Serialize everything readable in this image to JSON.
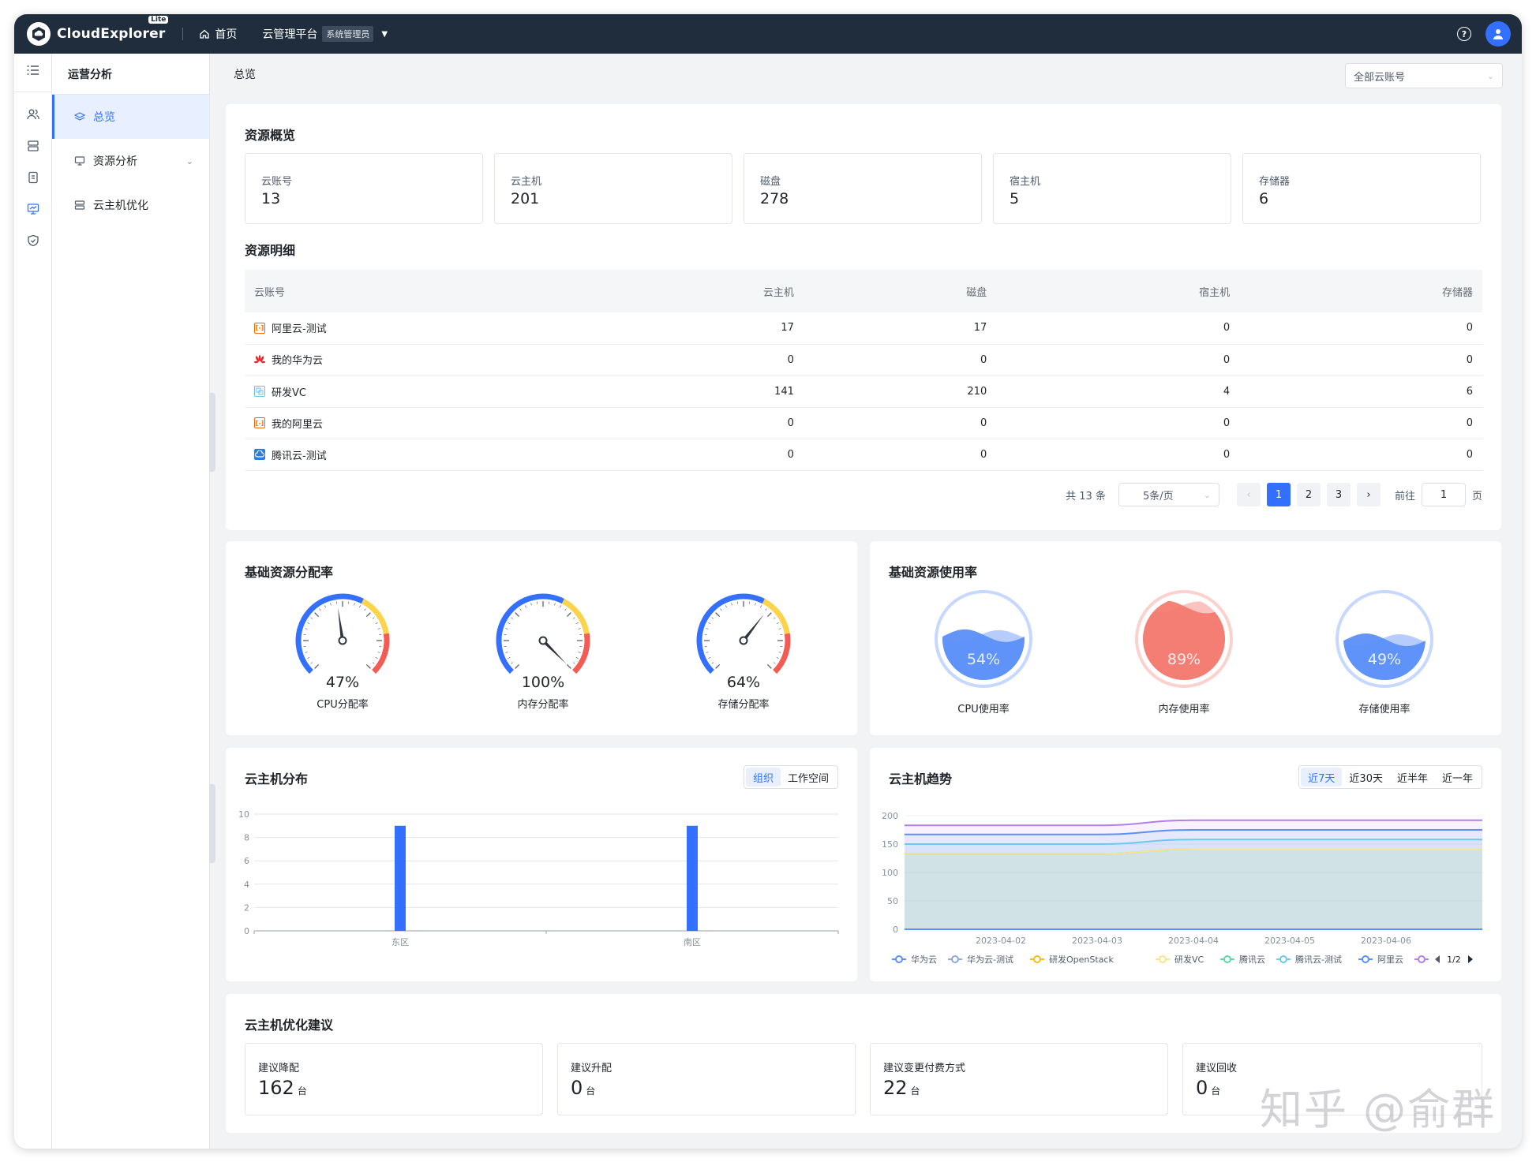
{
  "brand": {
    "name": "CloudExplorer",
    "badge": "Lite"
  },
  "topnav": {
    "home": "首页",
    "platform": "云管理平台",
    "role": "系统管理员"
  },
  "sidebar": {
    "title": "运营分析",
    "items": [
      {
        "label": "总览"
      },
      {
        "label": "资源分析"
      },
      {
        "label": "云主机优化"
      }
    ]
  },
  "breadcrumb": "总览",
  "account_select": "全部云账号",
  "overview": {
    "title": "资源概览",
    "stats": [
      {
        "label": "云账号",
        "value": "13"
      },
      {
        "label": "云主机",
        "value": "201"
      },
      {
        "label": "磁盘",
        "value": "278"
      },
      {
        "label": "宿主机",
        "value": "5"
      },
      {
        "label": "存储器",
        "value": "6"
      }
    ]
  },
  "detail": {
    "title": "资源明细",
    "columns": [
      "云账号",
      "云主机",
      "磁盘",
      "宿主机",
      "存储器"
    ],
    "rows": [
      {
        "icon": "aliyun-icon",
        "name": "阿里云-测试",
        "vm": "17",
        "disk": "17",
        "host": "0",
        "storage": "0"
      },
      {
        "icon": "huawei-icon",
        "name": "我的华为云",
        "vm": "0",
        "disk": "0",
        "host": "0",
        "storage": "0"
      },
      {
        "icon": "vsphere-icon",
        "name": "研发VC",
        "vm": "141",
        "disk": "210",
        "host": "4",
        "storage": "6"
      },
      {
        "icon": "aliyun-icon",
        "name": "我的阿里云",
        "vm": "0",
        "disk": "0",
        "host": "0",
        "storage": "0"
      },
      {
        "icon": "tencent-icon",
        "name": "腾讯云-测试",
        "vm": "0",
        "disk": "0",
        "host": "0",
        "storage": "0"
      }
    ],
    "pagination": {
      "total": "共 13 条",
      "page_size": "5条/页",
      "pages": [
        "1",
        "2",
        "3"
      ],
      "current": "1",
      "goto_label": "前往",
      "goto_value": "1",
      "page_unit": "页"
    }
  },
  "allocation": {
    "title": "基础资源分配率",
    "gauges": [
      {
        "pct": "47%",
        "value": 47,
        "label": "CPU分配率"
      },
      {
        "pct": "100%",
        "value": 100,
        "label": "内存分配率"
      },
      {
        "pct": "64%",
        "value": 64,
        "label": "存储分配率"
      }
    ]
  },
  "usage": {
    "title": "基础资源使用率",
    "items": [
      {
        "pct": "54%",
        "value": 54,
        "label": "CPU使用率",
        "color": "#5b8ff9"
      },
      {
        "pct": "89%",
        "value": 89,
        "label": "内存使用率",
        "color": "#f47a70"
      },
      {
        "pct": "49%",
        "value": 49,
        "label": "存储使用率",
        "color": "#5b8ff9"
      }
    ]
  },
  "vm_dist": {
    "title": "云主机分布",
    "tabs": [
      "组织",
      "工作空间"
    ],
    "active_tab": "组织"
  },
  "vm_trend": {
    "title": "云主机趋势",
    "tabs": [
      "近7天",
      "近30天",
      "近半年",
      "近一年"
    ],
    "active_tab": "近7天",
    "legend_page": "1/2"
  },
  "optimize": {
    "title": "云主机优化建议",
    "items": [
      {
        "label": "建议降配",
        "value": "162",
        "unit": "台"
      },
      {
        "label": "建议升配",
        "value": "0",
        "unit": "台"
      },
      {
        "label": "建议变更付费方式",
        "value": "22",
        "unit": "台"
      },
      {
        "label": "建议回收",
        "value": "0",
        "unit": "台"
      }
    ]
  },
  "watermark": "知乎 @俞群",
  "colors": {
    "primary": "#3370ff",
    "topbar": "#1f2d3d",
    "gauge_blue": "#3370ff",
    "gauge_yellow": "#fbd44b",
    "gauge_red": "#f25c54"
  },
  "chart_data": [
    {
      "type": "bar",
      "categories": [
        "东区",
        "南区"
      ],
      "values": [
        9,
        9
      ],
      "ylim": [
        0,
        10
      ],
      "yticks": [
        0,
        2,
        4,
        6,
        8,
        10
      ],
      "title": "云主机分布",
      "xlabel": "",
      "ylabel": "",
      "grid": true,
      "color": "#3370ff"
    },
    {
      "type": "area",
      "title": "云主机趋势",
      "x": [
        "2023-04-01",
        "2023-04-02",
        "2023-04-03",
        "2023-04-04",
        "2023-04-05",
        "2023-04-06",
        "2023-04-07"
      ],
      "xticks": [
        "2023-04-02",
        "2023-04-03",
        "2023-04-04",
        "2023-04-05",
        "2023-04-06"
      ],
      "ylim": [
        0,
        200
      ],
      "yticks": [
        0,
        50,
        100,
        150,
        200
      ],
      "grid": true,
      "legend_position": "bottom",
      "series": [
        {
          "name": "华为云",
          "color": "#5b8ff9",
          "values": [
            0,
            0,
            0,
            0,
            0,
            0,
            0
          ]
        },
        {
          "name": "华为云-测试",
          "color": "#8fa8d8",
          "values": [
            0,
            0,
            0,
            0,
            0,
            0,
            0
          ]
        },
        {
          "name": "研发OpenStack",
          "color": "#f6bd16",
          "values": [
            0,
            0,
            0,
            0,
            0,
            0,
            0
          ]
        },
        {
          "name": "研发VC",
          "color": "#fbe38c",
          "values": [
            133,
            133,
            133,
            141,
            141,
            141,
            141
          ]
        },
        {
          "name": "腾讯云",
          "color": "#5ad8a6",
          "values": [
            133,
            133,
            133,
            141,
            141,
            141,
            141
          ]
        },
        {
          "name": "腾讯云-测试",
          "color": "#6dc8ec",
          "values": [
            150,
            150,
            150,
            158,
            158,
            158,
            158
          ]
        },
        {
          "name": "阿里云",
          "color": "#5b8ff9",
          "values": [
            167,
            167,
            167,
            175,
            175,
            175,
            175
          ]
        },
        {
          "name": "",
          "color": "#b37feb",
          "values": [
            183,
            183,
            183,
            192,
            192,
            192,
            192
          ]
        }
      ]
    }
  ]
}
